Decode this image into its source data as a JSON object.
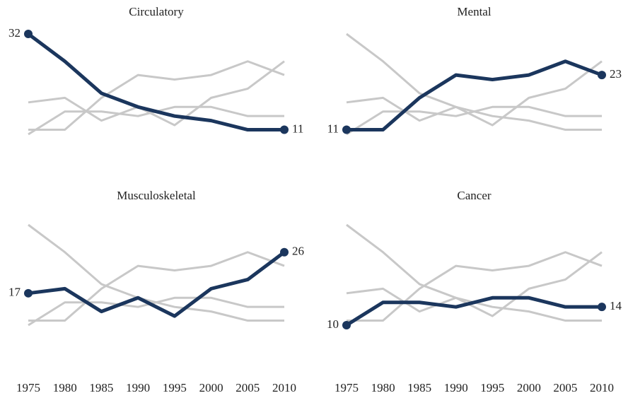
{
  "chart_data": {
    "type": "line",
    "x": [
      1975,
      1980,
      1985,
      1990,
      1995,
      2000,
      2005,
      2010
    ],
    "xlim": [
      1975,
      2010
    ],
    "ylim": [
      10,
      32
    ],
    "highlight_color": "#1b365d",
    "muted_color": "#c8c8c8",
    "series": [
      {
        "name": "Circulatory",
        "values": [
          32,
          26,
          19,
          16,
          14,
          13,
          11,
          11
        ]
      },
      {
        "name": "Mental",
        "values": [
          11,
          11,
          18,
          23,
          22,
          23,
          26,
          23
        ]
      },
      {
        "name": "Musculoskeletal",
        "values": [
          17,
          18,
          13,
          16,
          12,
          18,
          20,
          26
        ]
      },
      {
        "name": "Cancer",
        "values": [
          10,
          15,
          15,
          14,
          16,
          16,
          14,
          14
        ]
      }
    ]
  }
}
